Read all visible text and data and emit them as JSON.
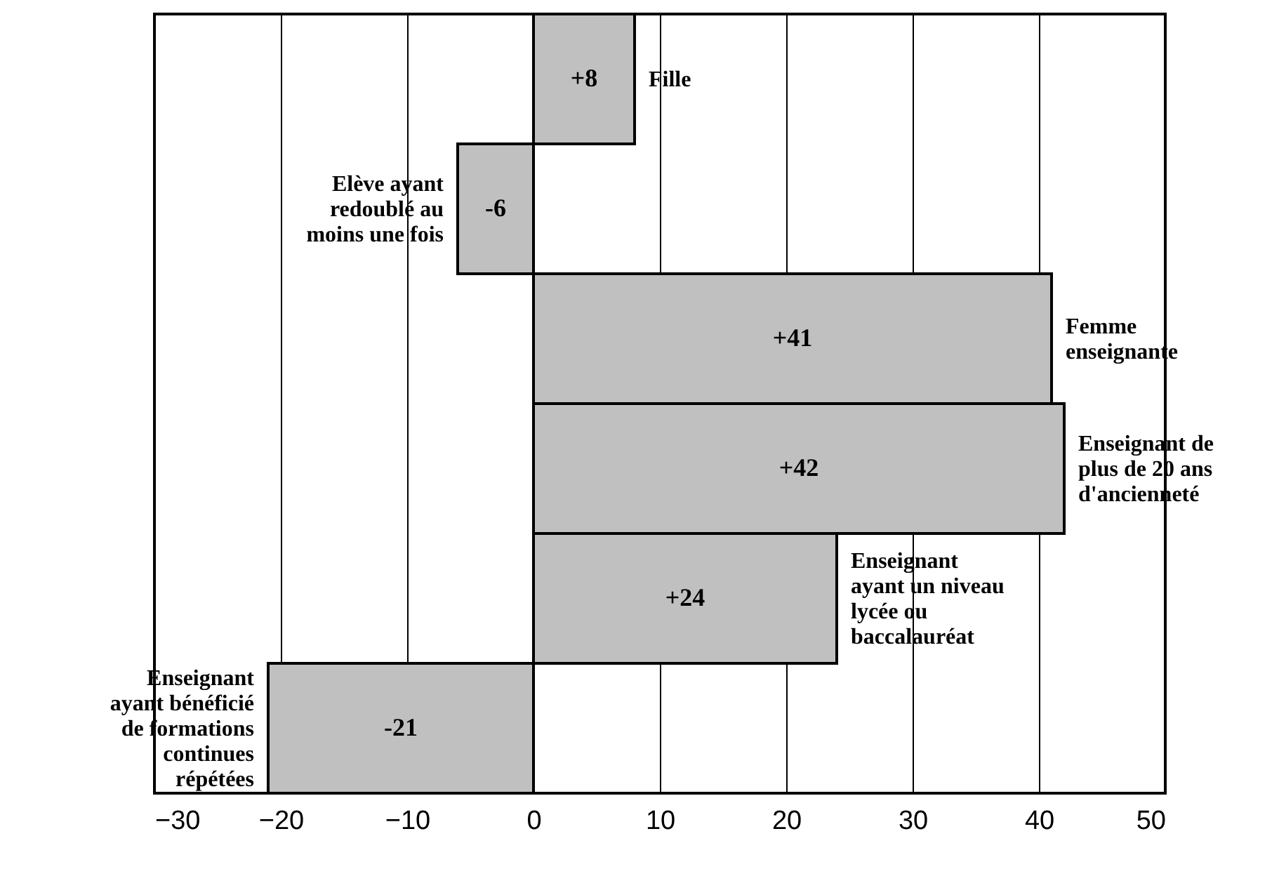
{
  "chart_data": {
    "type": "bar",
    "orientation": "horizontal",
    "categories": [
      "Fille",
      "Elève ayant redoublé au moins une fois",
      "Femme enseignante",
      "Enseignant de plus de 20 ans d'ancienneté",
      "Enseignant ayant un niveau lycée ou baccalauréat",
      "Enseignant ayant bénéficié de formations continues répétées"
    ],
    "values": [
      8,
      -6,
      41,
      42,
      24,
      -21
    ],
    "value_labels": [
      "+8",
      "-6",
      "+41",
      "+42",
      "+24",
      "-21"
    ],
    "color": "#c0c0c0",
    "xlim": [
      -30,
      50
    ],
    "xticks": [
      -30,
      -20,
      -10,
      0,
      10,
      20,
      30,
      40,
      50
    ],
    "grid": "x",
    "tick_labels": "x"
  }
}
